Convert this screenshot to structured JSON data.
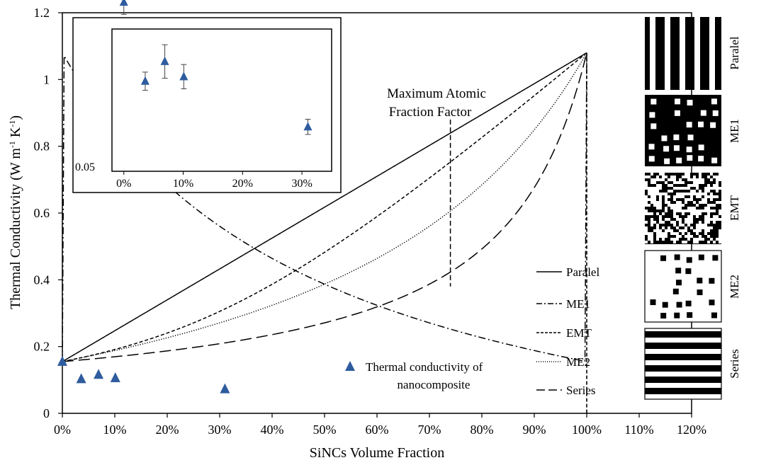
{
  "chart_data": [
    {
      "type": "line",
      "xlabel": "SiNCs Volume Fraction",
      "ylabel": "Thermal Conductivity (W m",
      "ylabel_sup1": "-1",
      "ylabel_mid": " K",
      "ylabel_sup2": "-1",
      "ylabel_end": ")",
      "xlim": [
        0,
        1.2
      ],
      "ylim": [
        0,
        1.2
      ],
      "xticks": [
        0,
        0.1,
        0.2,
        0.3,
        0.4,
        0.5,
        0.6,
        0.7,
        0.8,
        0.9,
        1.0,
        1.1,
        1.2
      ],
      "xtick_labels": [
        "0%",
        "10%",
        "20%",
        "30%",
        "40%",
        "50%",
        "60%",
        "70%",
        "80%",
        "90%",
        "100%",
        "110%",
        "120%"
      ],
      "yticks": [
        0,
        0.2,
        0.4,
        0.6,
        0.8,
        1.0,
        1.2
      ],
      "ytick_labels": [
        "0",
        "0.2",
        "0.4",
        "0.6",
        "0.8",
        "1",
        "1.2"
      ],
      "k_matrix": 0.155,
      "k_filler": 1.08,
      "series": [
        {
          "name": "Paralel",
          "model": "parallel",
          "dash": "solid"
        },
        {
          "name": "ME1",
          "model": "me1",
          "dash": "dashdot"
        },
        {
          "name": "EMT",
          "model": "emt",
          "dash": "dashed"
        },
        {
          "name": "ME2",
          "model": "me2",
          "dash": "dotted"
        },
        {
          "name": "Series",
          "model": "series",
          "dash": "longdash"
        }
      ],
      "points": {
        "name": "Thermal conductivity of nanocomposite",
        "name_line1": "Thermal conductivity of",
        "name_line2": "nanocomposite",
        "color": "#2E5C9E",
        "x": [
          0,
          0.036,
          0.069,
          0.101,
          0.31
        ],
        "y": [
          0.155,
          0.103,
          0.116,
          0.106,
          0.073
        ]
      },
      "annotations": {
        "max_fraction_label_line1": "Maximum Atomic",
        "max_fraction_label_line2": "Fraction Factor",
        "max_fraction_x": 0.74,
        "max_fraction_y_range": [
          0.38,
          0.88
        ],
        "filler_limit_x": 1.0
      },
      "legend_position": "lower-right",
      "grid": false
    },
    {
      "type": "scatter",
      "role": "inset",
      "xlim": [
        -0.02,
        0.35
      ],
      "xticks": [
        0,
        0.1,
        0.2,
        0.3
      ],
      "xtick_labels": [
        "0%",
        "10%",
        "20%",
        "30%"
      ],
      "ytick_label": "0.05",
      "points": {
        "x": [
          0,
          0.036,
          0.069,
          0.101,
          0.31
        ],
        "y": [
          0.155,
          0.103,
          0.116,
          0.106,
          0.073
        ],
        "err": [
          0.008,
          0.006,
          0.011,
          0.008,
          0.005
        ]
      }
    }
  ],
  "patterns": [
    {
      "label": "Paralel",
      "kind": "vertical-stripes"
    },
    {
      "label": "ME1",
      "kind": "black-matrix-white-squares"
    },
    {
      "label": "EMT",
      "kind": "random-noise"
    },
    {
      "label": "ME2",
      "kind": "white-matrix-black-squares"
    },
    {
      "label": "Series",
      "kind": "horizontal-stripes"
    }
  ]
}
